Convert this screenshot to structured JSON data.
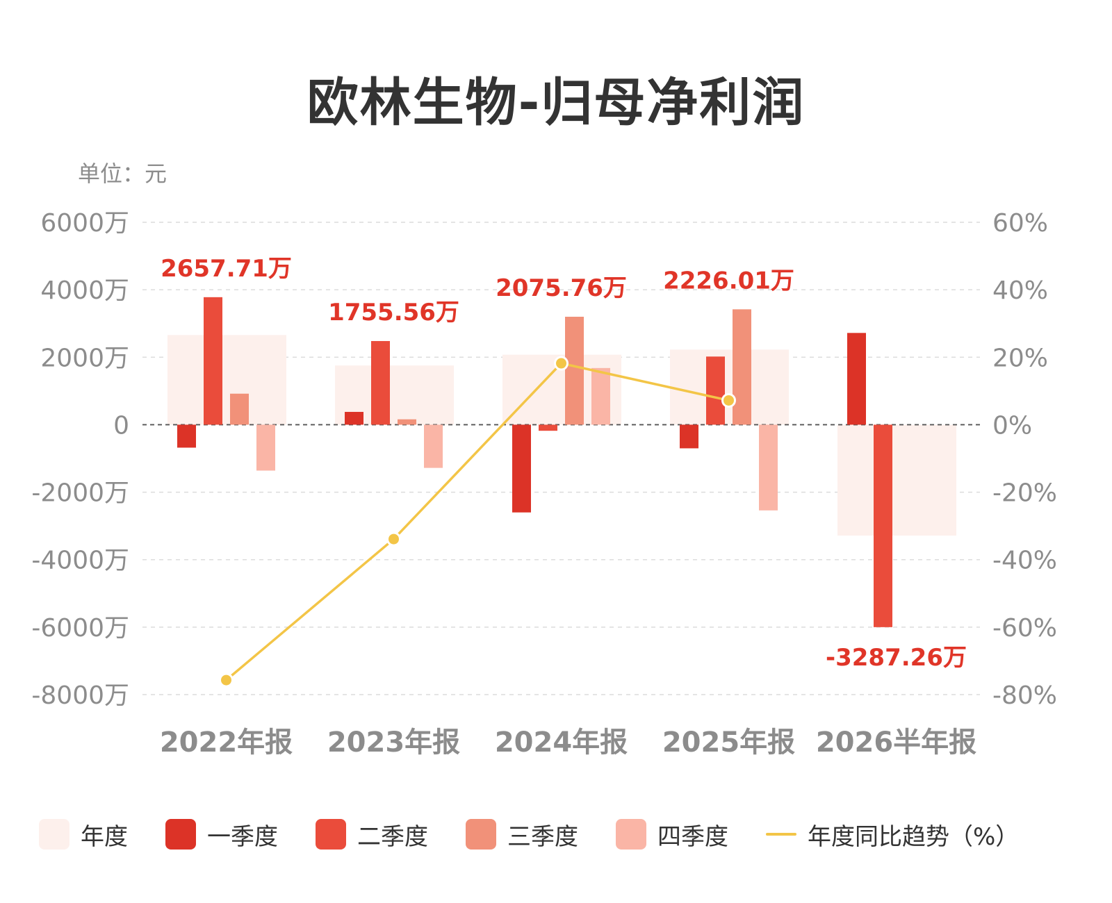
{
  "title": "欧林生物-归母净利润",
  "unit_label": "单位：元",
  "chart_data": {
    "type": "bar",
    "title": "欧林生物-归母净利润",
    "unit": "单位：元",
    "categories": [
      "2022年报",
      "2023年报",
      "2024年报",
      "2025年报",
      "2026半年报"
    ],
    "left_axis": {
      "ylim": [
        -8000,
        6000
      ],
      "ticks": [
        6000,
        4000,
        2000,
        0,
        -2000,
        -4000,
        -6000,
        -8000
      ],
      "tick_labels": [
        "6000万",
        "4000万",
        "2000万",
        "0",
        "-2000万",
        "-4000万",
        "-6000万",
        "-8000万"
      ]
    },
    "right_axis": {
      "ylim": [
        -80,
        60
      ],
      "ticks": [
        60,
        40,
        20,
        0,
        -20,
        -40,
        -60,
        -80
      ],
      "tick_labels": [
        "60%",
        "40%",
        "20%",
        "0%",
        "-20%",
        "-40%",
        "-60%",
        "-80%"
      ]
    },
    "grid": true,
    "legend_position": "bottom",
    "series": [
      {
        "name": "年度",
        "kind": "bar-background",
        "color": "#fdf0ec",
        "values": [
          2657.71,
          1755.56,
          2075.76,
          2226.01,
          -3287.26
        ]
      },
      {
        "name": "一季度",
        "kind": "bar",
        "color": "#dc3327",
        "values": [
          -680,
          380,
          -2600,
          -700,
          2720
        ]
      },
      {
        "name": "二季度",
        "kind": "bar",
        "color": "#ea4c3b",
        "values": [
          3780,
          2480,
          -180,
          2020,
          -6000
        ]
      },
      {
        "name": "三季度",
        "kind": "bar",
        "color": "#f19179",
        "values": [
          920,
          160,
          3200,
          3420,
          null
        ]
      },
      {
        "name": "四季度",
        "kind": "bar",
        "color": "#fab5a6",
        "values": [
          -1360,
          -1280,
          1680,
          -2540,
          null
        ]
      },
      {
        "name": "年度同比趋势（%）",
        "kind": "line",
        "axis": "right",
        "color": "#f3c547",
        "values": [
          -75.7,
          -33.9,
          18.2,
          7.2,
          null
        ]
      }
    ],
    "annotations": [
      "2657.71万",
      "1755.56万",
      "2075.76万",
      "2226.01万",
      "-3287.26万"
    ],
    "annotation_color": "#e03528"
  }
}
